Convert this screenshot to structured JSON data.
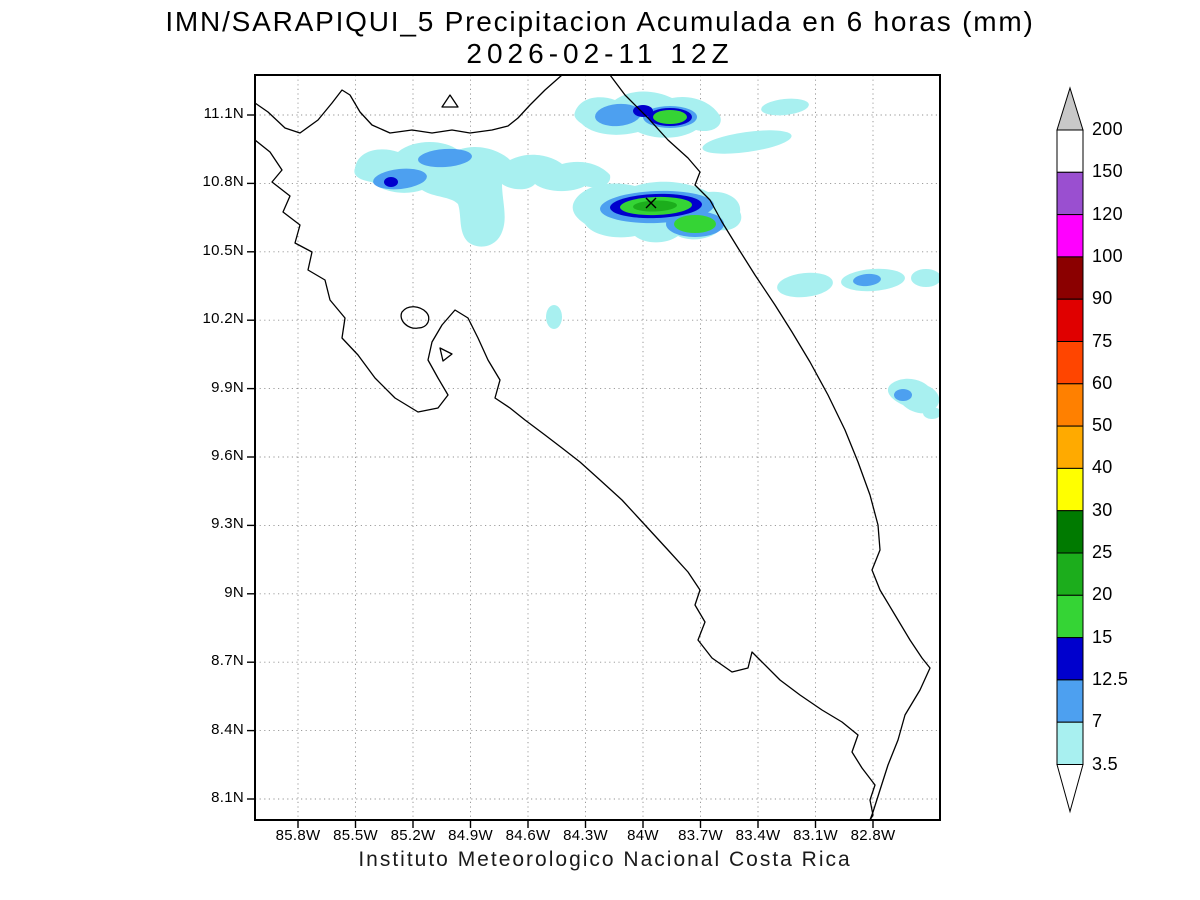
{
  "title": {
    "line1": "IMN/SARAPIQUI_5 Precipitacion Acumulada en 6 horas (mm)",
    "line2": "2026-02-11 12Z"
  },
  "footer": {
    "text": "Instituto Meteorologico Nacional Costa Rica"
  },
  "axes": {
    "lat_ticks": [
      "11.1N",
      "10.8N",
      "10.5N",
      "10.2N",
      "9.9N",
      "9.6N",
      "9.3N",
      "9N",
      "8.7N",
      "8.4N",
      "8.1N"
    ],
    "lon_ticks": [
      "85.8W",
      "85.5W",
      "85.2W",
      "84.9W",
      "84.6W",
      "84.3W",
      "84W",
      "83.7W",
      "83.4W",
      "83.1W",
      "82.8W"
    ]
  },
  "colorbar": {
    "labels_top_to_bottom": [
      "200",
      "150",
      "120",
      "100",
      "90",
      "75",
      "60",
      "50",
      "40",
      "30",
      "25",
      "20",
      "15",
      "12.5",
      "7",
      "3.5"
    ],
    "segment_colors_top_to_bottom": [
      "#ffffff",
      "#9a4fd0",
      "#ff00ff",
      "#8b0000",
      "#e00000",
      "#ff4500",
      "#ff8000",
      "#ffaa00",
      "#ffff00",
      "#007a00",
      "#1cad1c",
      "#35d435",
      "#0000cd",
      "#4da0f0",
      "#a8f0f0"
    ],
    "top_arrow_color": "#c8c8c8",
    "bottom_arrow_color": "#ffffff"
  },
  "chart_data": {
    "type": "heatmap",
    "subtype": "filled-contour-precipitation-map",
    "title": "IMN/SARAPIQUI_5 Precipitacion Acumulada en 6 horas (mm)",
    "valid_time": "2026-02-11 12Z",
    "units": "mm",
    "region": "Costa Rica",
    "lon_range": [
      "85.8W",
      "82.8W"
    ],
    "lat_range": [
      "8.1N",
      "11.1N"
    ],
    "levels_mm": [
      3.5,
      7,
      12.5,
      15,
      20,
      25,
      30,
      40,
      50,
      60,
      75,
      90,
      100,
      120,
      150,
      200
    ],
    "palette_low_to_high": [
      "#a8f0f0",
      "#4da0f0",
      "#0000cd",
      "#35d435",
      "#1cad1c",
      "#007a00",
      "#ffff00",
      "#ffaa00",
      "#ff8000",
      "#ff4500",
      "#e00000",
      "#8b0000",
      "#ff00ff",
      "#9a4fd0",
      "#ffffff"
    ],
    "features": [
      {
        "approx_location": "83.9W 11.1N",
        "max_band_mm": "15-20"
      },
      {
        "approx_location": "84.6W 10.85N",
        "max_band_mm": "12.5-15"
      },
      {
        "approx_location": "83.95W 10.74N",
        "max_band_mm": "20-25"
      },
      {
        "approx_location": "83.75W 10.66N",
        "max_band_mm": "15-20"
      },
      {
        "approx_location": "83.45W 10.4N",
        "max_band_mm": "3.5-7"
      },
      {
        "approx_location": "83.1W 10.42N",
        "max_band_mm": "7-12.5"
      },
      {
        "approx_location": "82.9W 9.85N",
        "max_band_mm": "7-12.5"
      }
    ],
    "marker": {
      "symbol": "x",
      "approx_location": "83.95W 10.75N"
    }
  }
}
